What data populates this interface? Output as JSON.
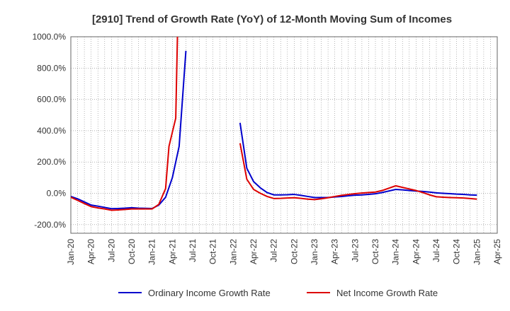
{
  "chart_data": {
    "type": "line",
    "title": "[2910]  Trend of Growth Rate (YoY) of 12-Month Moving Sum of Incomes",
    "xlabel": "",
    "ylabel": "",
    "x_ticks": [
      "Jan-20",
      "Apr-20",
      "Jul-20",
      "Oct-20",
      "Jan-21",
      "Apr-21",
      "Jul-21",
      "Oct-21",
      "Jan-22",
      "Apr-22",
      "Jul-22",
      "Oct-22",
      "Jan-23",
      "Apr-23",
      "Jul-23",
      "Oct-23",
      "Jan-24",
      "Apr-24",
      "Jul-24",
      "Oct-24",
      "Jan-25",
      "Apr-25"
    ],
    "y_ticks": [
      {
        "value": 1000,
        "label": "1000.0%"
      },
      {
        "value": 800,
        "label": "800.0%"
      },
      {
        "value": 600,
        "label": "600.0%"
      },
      {
        "value": 400,
        "label": "400.0%"
      },
      {
        "value": 200,
        "label": "200.0%"
      },
      {
        "value": 0,
        "label": "0.0%"
      },
      {
        "value": -200,
        "label": "-200.0%"
      }
    ],
    "ylim": [
      -255,
      1000
    ],
    "x_range": [
      "Jan-20",
      "Apr-25"
    ],
    "grid": true,
    "legend_position": "bottom",
    "series": [
      {
        "name": "Ordinary Income Growth Rate",
        "color": "#0000cc",
        "points": [
          [
            "Jan-20",
            -20
          ],
          [
            "Feb-20",
            -35
          ],
          [
            "Mar-20",
            -55
          ],
          [
            "Apr-20",
            -75
          ],
          [
            "May-20",
            -82
          ],
          [
            "Jun-20",
            -90
          ],
          [
            "Jul-20",
            -98
          ],
          [
            "Aug-20",
            -97
          ],
          [
            "Sep-20",
            -95
          ],
          [
            "Oct-20",
            -92
          ],
          [
            "Nov-20",
            -95
          ],
          [
            "Dec-20",
            -96
          ],
          [
            "Jan-21",
            -97
          ],
          [
            "Feb-21",
            -75
          ],
          [
            "Mar-21",
            -25
          ],
          [
            "Apr-21",
            100
          ],
          [
            "May-21",
            300
          ],
          [
            "Jun-21",
            910
          ],
          [
            "Feb-22",
            450
          ],
          [
            "Mar-22",
            160
          ],
          [
            "Apr-22",
            75
          ],
          [
            "May-22",
            35
          ],
          [
            "Jun-22",
            5
          ],
          [
            "Jul-22",
            -10
          ],
          [
            "Aug-22",
            -10
          ],
          [
            "Sep-22",
            -9
          ],
          [
            "Oct-22",
            -7
          ],
          [
            "Nov-22",
            -13
          ],
          [
            "Dec-22",
            -20
          ],
          [
            "Jan-23",
            -27
          ],
          [
            "Feb-23",
            -27
          ],
          [
            "Mar-23",
            -27
          ],
          [
            "Apr-23",
            -23
          ],
          [
            "May-23",
            -20
          ],
          [
            "Jun-23",
            -16
          ],
          [
            "Jul-23",
            -12
          ],
          [
            "Aug-23",
            -10
          ],
          [
            "Sep-23",
            -7
          ],
          [
            "Oct-23",
            -3
          ],
          [
            "Nov-23",
            5
          ],
          [
            "Dec-23",
            15
          ],
          [
            "Jan-24",
            25
          ],
          [
            "Feb-24",
            22
          ],
          [
            "Mar-24",
            18
          ],
          [
            "Apr-24",
            15
          ],
          [
            "May-24",
            12
          ],
          [
            "Jun-24",
            8
          ],
          [
            "Jul-24",
            3
          ],
          [
            "Aug-24",
            0
          ],
          [
            "Sep-24",
            -2
          ],
          [
            "Oct-24",
            -5
          ],
          [
            "Nov-24",
            -7
          ],
          [
            "Dec-24",
            -10
          ],
          [
            "Jan-25",
            -12
          ]
        ]
      },
      {
        "name": "Net Income Growth Rate",
        "color": "#dd0000",
        "points": [
          [
            "Jan-20",
            -25
          ],
          [
            "Feb-20",
            -45
          ],
          [
            "Mar-20",
            -65
          ],
          [
            "Apr-20",
            -85
          ],
          [
            "May-20",
            -93
          ],
          [
            "Jun-20",
            -100
          ],
          [
            "Jul-20",
            -108
          ],
          [
            "Aug-20",
            -106
          ],
          [
            "Sep-20",
            -103
          ],
          [
            "Oct-20",
            -100
          ],
          [
            "Nov-20",
            -100
          ],
          [
            "Dec-20",
            -100
          ],
          [
            "Jan-21",
            -100
          ],
          [
            "Feb-21",
            -70
          ],
          [
            "Mar-21",
            30
          ],
          [
            "Mar-21_5",
            300
          ],
          [
            "Apr-21_5",
            480
          ],
          [
            "Apr-21_75",
            1000
          ],
          [
            "Feb-22",
            320
          ],
          [
            "Mar-22",
            90
          ],
          [
            "Apr-22",
            25
          ],
          [
            "May-22",
            0
          ],
          [
            "Jun-22",
            -20
          ],
          [
            "Jul-22",
            -33
          ],
          [
            "Aug-22",
            -32
          ],
          [
            "Sep-22",
            -30
          ],
          [
            "Oct-22",
            -28
          ],
          [
            "Nov-22",
            -32
          ],
          [
            "Dec-22",
            -37
          ],
          [
            "Jan-23",
            -40
          ],
          [
            "Feb-23",
            -35
          ],
          [
            "Mar-23",
            -28
          ],
          [
            "Apr-23",
            -20
          ],
          [
            "May-23",
            -13
          ],
          [
            "Jun-23",
            -7
          ],
          [
            "Jul-23",
            -2
          ],
          [
            "Aug-23",
            2
          ],
          [
            "Sep-23",
            5
          ],
          [
            "Oct-23",
            8
          ],
          [
            "Nov-23",
            18
          ],
          [
            "Dec-23",
            33
          ],
          [
            "Jan-24",
            48
          ],
          [
            "Feb-24",
            38
          ],
          [
            "Mar-24",
            28
          ],
          [
            "Apr-24",
            18
          ],
          [
            "May-24",
            5
          ],
          [
            "Jun-24",
            -10
          ],
          [
            "Jul-24",
            -22
          ],
          [
            "Aug-24",
            -25
          ],
          [
            "Sep-24",
            -27
          ],
          [
            "Oct-24",
            -28
          ],
          [
            "Nov-24",
            -30
          ],
          [
            "Dec-24",
            -33
          ],
          [
            "Jan-25",
            -37
          ]
        ]
      }
    ]
  }
}
